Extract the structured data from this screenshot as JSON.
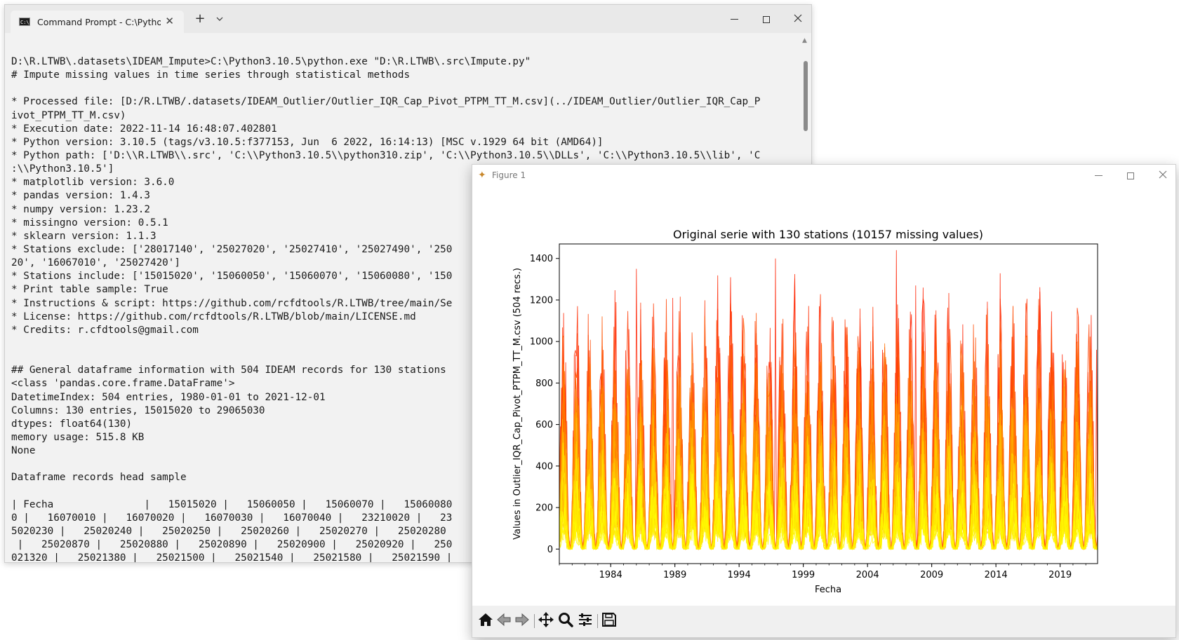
{
  "terminal": {
    "tab_title": "Command Prompt - C:\\Pythor",
    "new_tab_label": "+",
    "dropdown_label": "⌄",
    "close_tab_label": "✕",
    "lines": [
      "D:\\R.LTWB\\.datasets\\IDEAM_Impute>C:\\Python3.10.5\\python.exe \"D:\\R.LTWB\\.src\\Impute.py\"",
      "# Impute missing values in time series through statistical methods",
      "",
      "* Processed file: [D:/R.LTWB/.datasets/IDEAM_Outlier/Outlier_IQR_Cap_Pivot_PTPM_TT_M.csv](../IDEAM_Outlier/Outlier_IQR_Cap_P",
      "ivot_PTPM_TT_M.csv)",
      "* Execution date: 2022-11-14 16:48:07.402801",
      "* Python version: 3.10.5 (tags/v3.10.5:f377153, Jun  6 2022, 16:14:13) [MSC v.1929 64 bit (AMD64)]",
      "* Python path: ['D:\\\\R.LTWB\\\\.src', 'C:\\\\Python3.10.5\\\\python310.zip', 'C:\\\\Python3.10.5\\\\DLLs', 'C:\\\\Python3.10.5\\\\lib', 'C",
      ":\\\\Python3.10.5']",
      "* matplotlib version: 3.6.0",
      "* pandas version: 1.4.3",
      "* numpy version: 1.23.2",
      "* missingno version: 0.5.1",
      "* sklearn version: 1.1.3",
      "* Stations exclude: ['28017140', '25027020', '25027410', '25027490', '250",
      "20', '16067010', '25027420']",
      "* Stations include: ['15015020', '15060050', '15060070', '15060080', '150",
      "* Print table sample: True",
      "* Instructions & script: https://github.com/rcfdtools/R.LTWB/tree/main/Se",
      "* License: https://github.com/rcfdtools/R.LTWB/blob/main/LICENSE.md",
      "* Credits: r.cfdtools@gmail.com",
      "",
      "",
      "## General dataframe information with 504 IDEAM records for 130 stations",
      "<class 'pandas.core.frame.DataFrame'>",
      "DatetimeIndex: 504 entries, 1980-01-01 to 2021-12-01",
      "Columns: 130 entries, 15015020 to 29065030",
      "dtypes: float64(130)",
      "memory usage: 515.8 KB",
      "None",
      "",
      "Dataframe records head sample",
      "",
      "| Fecha               |   15015020 |   15060050 |   15060070 |   15060080",
      "0 |   16070010 |   16070020 |   16070030 |   16070040 |   23210020 |   23",
      "5020230 |   25020240 |   25020250 |   25020260 |   25020270 |   25020280",
      " |   25020870 |   25020880 |   25020890 |   25020900 |   25020920 |   250",
      "021320 |   25021380 |   25021500 |   25021540 |   25021580 |   25021590 |"
    ]
  },
  "figure": {
    "window_title": "Figure 1",
    "toolbar_tools": [
      "home-icon",
      "back-icon",
      "forward-icon",
      "pan-icon",
      "zoom-icon",
      "configure-icon",
      "save-icon"
    ],
    "colors": {
      "dark_series": "#e8200c",
      "mid_series": "#ff8c00",
      "light_series": "#ffee00"
    }
  },
  "chart_data": {
    "type": "line",
    "title": "Original serie with 130 stations (10157 missing values)",
    "xlabel": "Fecha",
    "ylabel": "Values in Outlier_IQR_Cap_Pivot_PTPM_TT_M.csv (504 recs.)",
    "xlim": [
      "1980-01-01",
      "2021-12-01"
    ],
    "ylim": [
      -70,
      1470
    ],
    "x_ticks": [
      "1984",
      "1989",
      "1994",
      "1999",
      "2004",
      "2009",
      "2014",
      "2019"
    ],
    "y_ticks": [
      0,
      200,
      400,
      600,
      800,
      1000,
      1200,
      1400
    ],
    "grid": false,
    "series_count": 130,
    "colormap": "autumn",
    "peaks": [
      {
        "x": "1986-01",
        "y": 1350
      },
      {
        "x": "1988-11",
        "y": 1210
      },
      {
        "x": "1996-11",
        "y": 1400
      },
      {
        "x": "2006-04",
        "y": 1440
      },
      {
        "x": "2007-10",
        "y": 1270
      },
      {
        "x": "2021-11",
        "y": 960
      }
    ]
  }
}
